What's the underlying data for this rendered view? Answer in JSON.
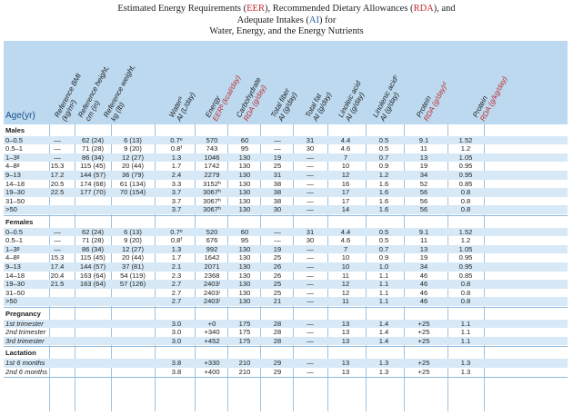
{
  "title": {
    "line1": "Estimated Energy Requirements (",
    "line1_eer": "EER",
    "line1_mid": "), Recommended Dietary Allowances (",
    "line1_rda": "RDA",
    "line1_end": "), and",
    "line2_a": "Adequate Intakes (",
    "line2_ai": "AI",
    "line2_b": ") for",
    "line3": "Water, Energy, and the Energy Nutrients"
  },
  "headers": {
    "age": "Age(yr)",
    "cols": [
      {
        "l1": "Reference BMI",
        "l2": "(kg/m²)"
      },
      {
        "l1": "Reference height,",
        "l2": "cm (in)"
      },
      {
        "l1": "Reference weight,",
        "l2": "kg (lb)"
      },
      {
        "l1": "Waterᵃ",
        "l2": "AI (L/day)"
      },
      {
        "l1": "Energy",
        "l2": "EERᵇ (kcal/day)"
      },
      {
        "l1": "Carbohydrate",
        "l2": "RDA (g/day)"
      },
      {
        "l1": "Total fiber",
        "l2": "AI (g/day)"
      },
      {
        "l1": "Total fat",
        "l2": "AI (g/day)"
      },
      {
        "l1": "Linoleic acid",
        "l2": "AI (g/day)"
      },
      {
        "l1": "Linolenic acidᶜ",
        "l2": "AI (g/day)"
      },
      {
        "l1": "Protein",
        "l2": "RDA (g/day)ᵈ"
      },
      {
        "l1": "Protein",
        "l2": "RDA (g/kg/day)"
      }
    ]
  },
  "sections": [
    {
      "name": "Males",
      "rows": [
        [
          "0–0.5",
          "—",
          "62 (24)",
          "6 (13)",
          "0.7ᵉ",
          "570",
          "60",
          "—",
          "31",
          "4.4",
          "0.5",
          "9.1",
          "1.52"
        ],
        [
          "0.5–1",
          "—",
          "71 (28)",
          "9 (20)",
          "0.8ᶠ",
          "743",
          "95",
          "—",
          "30",
          "4.6",
          "0.5",
          "11",
          "1.2"
        ],
        [
          "1–3ᵍ",
          "—",
          "86 (34)",
          "12 (27)",
          "1.3",
          "1046",
          "130",
          "19",
          "—",
          "7",
          "0.7",
          "13",
          "1.05"
        ],
        [
          "4–8ᵍ",
          "15.3",
          "115 (45)",
          "20 (44)",
          "1.7",
          "1742",
          "130",
          "25",
          "—",
          "10",
          "0.9",
          "19",
          "0.95"
        ],
        [
          "9–13",
          "17.2",
          "144 (57)",
          "36 (79)",
          "2.4",
          "2279",
          "130",
          "31",
          "—",
          "12",
          "1.2",
          "34",
          "0.95"
        ],
        [
          "14–18",
          "20.5",
          "174 (68)",
          "61 (134)",
          "3.3",
          "3152ʰ",
          "130",
          "38",
          "—",
          "16",
          "1.6",
          "52",
          "0.85"
        ],
        [
          "19–30",
          "22.5",
          "177 (70)",
          "70 (154)",
          "3.7",
          "3067ʰ",
          "130",
          "38",
          "—",
          "17",
          "1.6",
          "56",
          "0.8"
        ],
        [
          "31–50",
          "",
          "",
          "",
          "3.7",
          "3067ʰ",
          "130",
          "38",
          "—",
          "17",
          "1.6",
          "56",
          "0.8"
        ],
        [
          ">50",
          "",
          "",
          "",
          "3.7",
          "3067ʰ",
          "130",
          "30",
          "—",
          "14",
          "1.6",
          "56",
          "0.8"
        ]
      ]
    },
    {
      "name": "Females",
      "rows": [
        [
          "0–0.5",
          "—",
          "62 (24)",
          "6 (13)",
          "0.7ᵉ",
          "520",
          "60",
          "—",
          "31",
          "4.4",
          "0.5",
          "9.1",
          "1.52"
        ],
        [
          "0.5–1",
          "—",
          "71 (28)",
          "9 (20)",
          "0.8ᶠ",
          "676",
          "95",
          "—",
          "30",
          "4.6",
          "0.5",
          "11",
          "1.2"
        ],
        [
          "1–3ᵍ",
          "—",
          "86 (34)",
          "12 (27)",
          "1.3",
          "992",
          "130",
          "19",
          "—",
          "7",
          "0.7",
          "13",
          "1.05"
        ],
        [
          "4–8ᵍ",
          "15.3",
          "115 (45)",
          "20 (44)",
          "1.7",
          "1642",
          "130",
          "25",
          "—",
          "10",
          "0.9",
          "19",
          "0.95"
        ],
        [
          "9–13",
          "17.4",
          "144 (57)",
          "37 (81)",
          "2.1",
          "2071",
          "130",
          "26",
          "—",
          "10",
          "1.0",
          "34",
          "0.95"
        ],
        [
          "14–18",
          "20.4",
          "163 (64)",
          "54 (119)",
          "2.3",
          "2368",
          "130",
          "26",
          "—",
          "11",
          "1.1",
          "46",
          "0.85"
        ],
        [
          "19–30",
          "21.5",
          "163 (64)",
          "57 (126)",
          "2.7",
          "2403ⁱ",
          "130",
          "25",
          "—",
          "12",
          "1.1",
          "46",
          "0.8"
        ],
        [
          "31–50",
          "",
          "",
          "",
          "2.7",
          "2403ⁱ",
          "130",
          "25",
          "—",
          "12",
          "1.1",
          "46",
          "0.8"
        ],
        [
          ">50",
          "",
          "",
          "",
          "2.7",
          "2403ⁱ",
          "130",
          "21",
          "—",
          "11",
          "1.1",
          "46",
          "0.8"
        ]
      ]
    },
    {
      "name": "Pregnancy",
      "rows": [
        [
          "1st trimester",
          "",
          "",
          "",
          "3.0",
          "+0",
          "175",
          "28",
          "—",
          "13",
          "1.4",
          "+25",
          "1.1"
        ],
        [
          "2nd trimester",
          "",
          "",
          "",
          "3.0",
          "+340",
          "175",
          "28",
          "—",
          "13",
          "1.4",
          "+25",
          "1.1"
        ],
        [
          "3rd trimester",
          "",
          "",
          "",
          "3.0",
          "+452",
          "175",
          "28",
          "—",
          "13",
          "1.4",
          "+25",
          "1.1"
        ]
      ]
    },
    {
      "name": "Lactation",
      "rows": [
        [
          "1st 6 months",
          "",
          "",
          "",
          "3.8",
          "+330",
          "210",
          "29",
          "—",
          "13",
          "1.3",
          "+25",
          "1.3"
        ],
        [
          "2nd 6 months",
          "",
          "",
          "",
          "3.8",
          "+400",
          "210",
          "29",
          "—",
          "13",
          "1.3",
          "+25",
          "1.3"
        ]
      ]
    }
  ]
}
